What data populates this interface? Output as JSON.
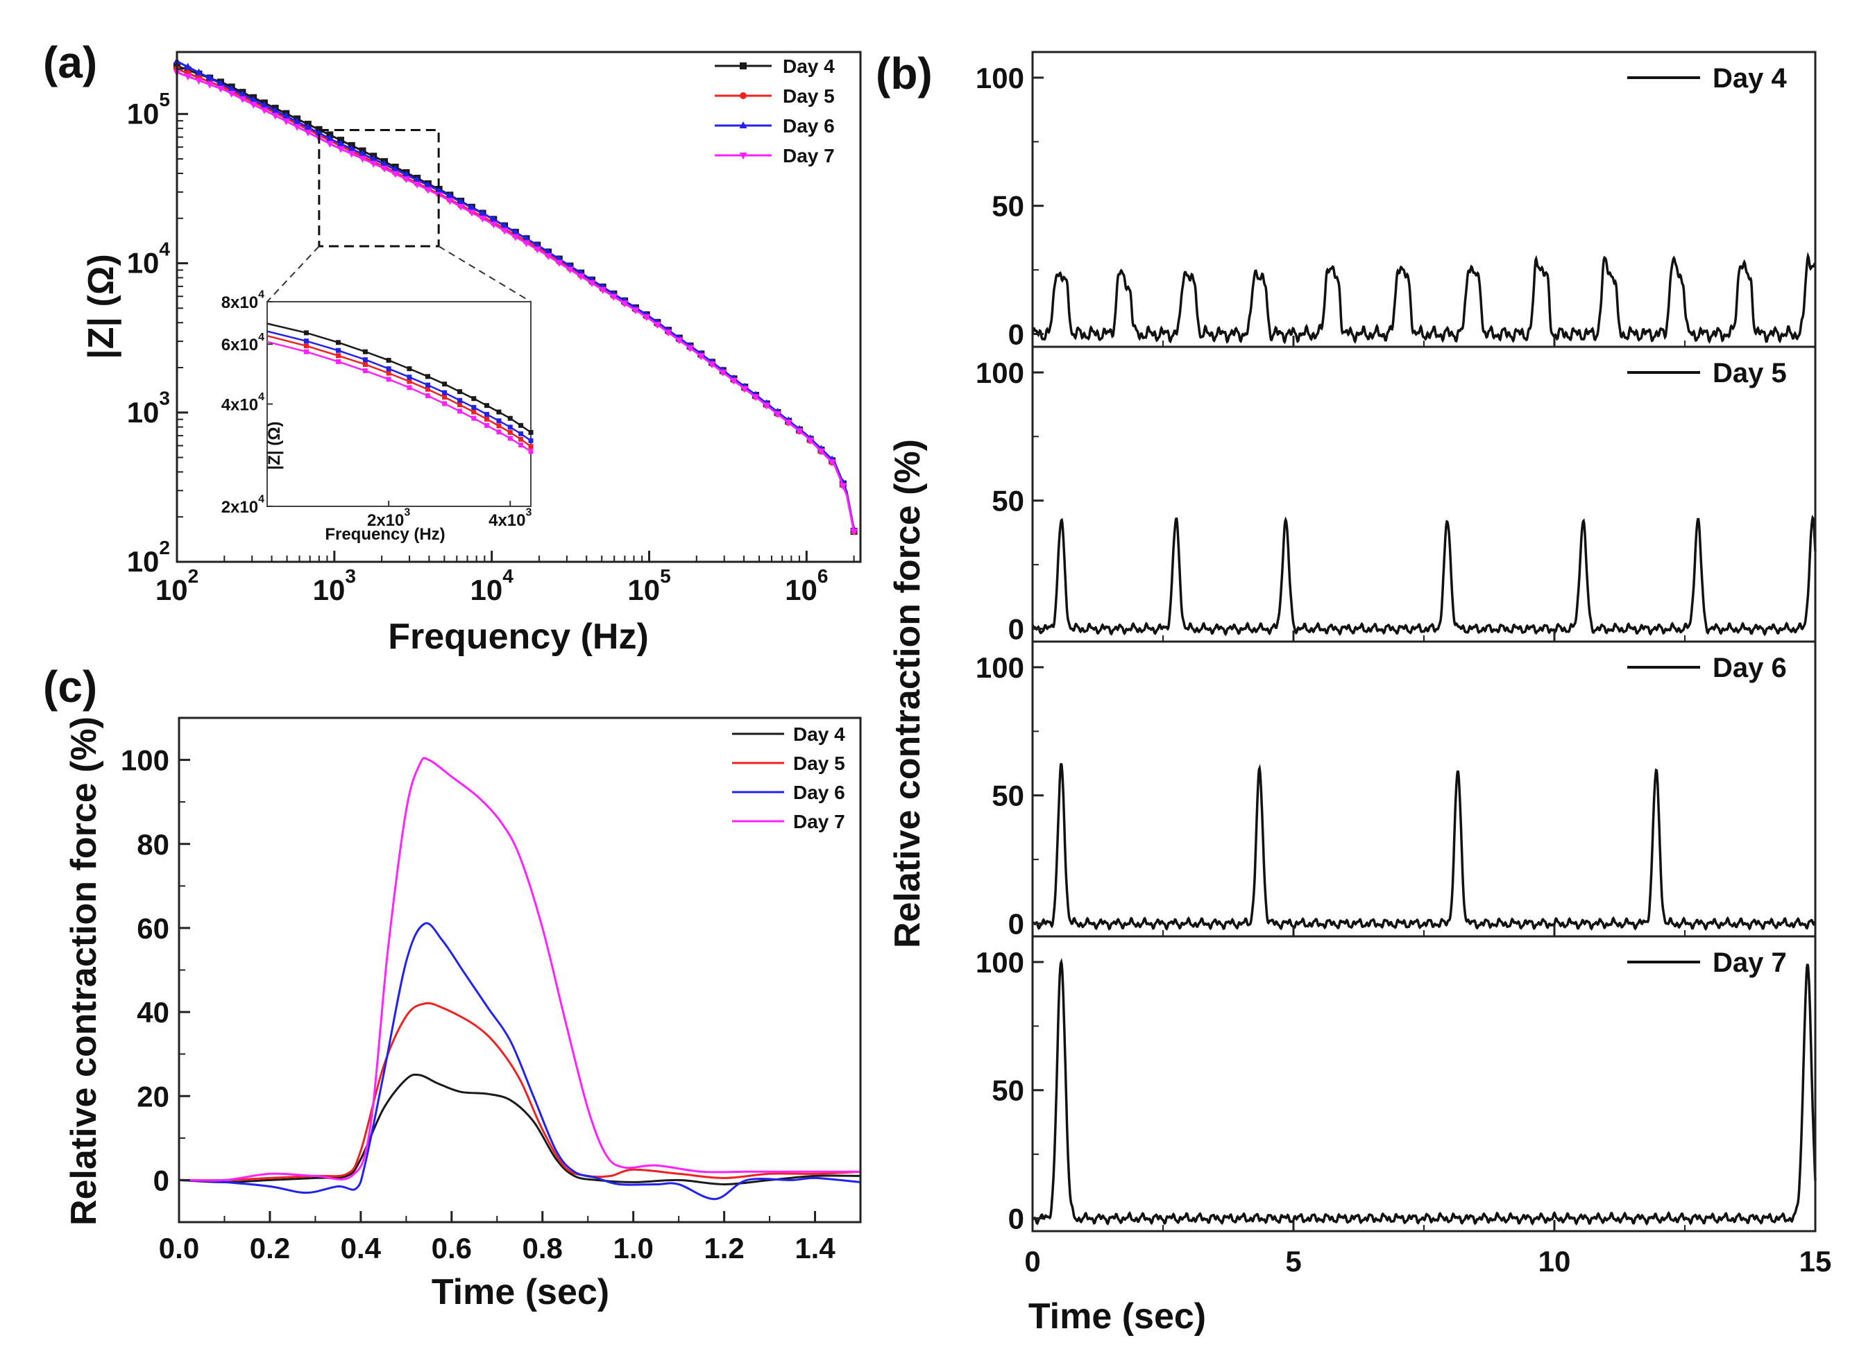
{
  "panel_labels": {
    "a": "(a)",
    "b": "(b)",
    "c": "(c)"
  },
  "colors": {
    "day4": "#1a1a1a",
    "day5": "#ee2222",
    "day6": "#2222ee",
    "day7": "#ff22ff"
  },
  "chart_data": [
    {
      "id": "a",
      "type": "line",
      "scale": "log-log",
      "title": "",
      "xlabel": "Frequency (Hz)",
      "ylabel": "|Z| (Ω)",
      "xlim": [
        100,
        2200000
      ],
      "ylim": [
        100,
        260000
      ],
      "xticks": [
        {
          "v": 100,
          "b": "10",
          "e": "2"
        },
        {
          "v": 1000,
          "b": "10",
          "e": "3"
        },
        {
          "v": 10000,
          "b": "10",
          "e": "4"
        },
        {
          "v": 100000,
          "b": "10",
          "e": "5"
        },
        {
          "v": 1000000,
          "b": "10",
          "e": "6"
        }
      ],
      "yticks": [
        {
          "v": 100,
          "b": "10",
          "e": "2"
        },
        {
          "v": 1000,
          "b": "10",
          "e": "3"
        },
        {
          "v": 10000,
          "b": "10",
          "e": "4"
        },
        {
          "v": 100000,
          "b": "10",
          "e": "5"
        }
      ],
      "legend": "top-right",
      "x": [
        100,
        200,
        500,
        1000,
        2000,
        5000,
        10000,
        20000,
        50000,
        100000,
        200000,
        500000,
        1000000,
        1500000,
        1800000,
        2000000
      ],
      "series": [
        {
          "name": "Day 4",
          "color": "#1a1a1a",
          "marker": "square",
          "values": [
            210000,
            160000,
            100000,
            70000,
            49000,
            30000,
            20000,
            13000,
            7000,
            4400,
            2600,
            1250,
            700,
            460,
            290,
            160
          ]
        },
        {
          "name": "Day 5",
          "color": "#ee2222",
          "marker": "circle",
          "values": [
            200000,
            150000,
            93000,
            64000,
            45000,
            28000,
            19000,
            12500,
            6800,
            4300,
            2550,
            1230,
            690,
            450,
            285,
            160
          ]
        },
        {
          "name": "Day 6",
          "color": "#2222ee",
          "marker": "triangle",
          "values": [
            225000,
            155000,
            96000,
            66000,
            47000,
            29500,
            20000,
            13000,
            7000,
            4400,
            2600,
            1260,
            710,
            470,
            295,
            165
          ]
        },
        {
          "name": "Day 7",
          "color": "#ff22ff",
          "marker": "tri-down",
          "values": [
            190000,
            145000,
            89000,
            61000,
            44000,
            27500,
            18500,
            12200,
            6700,
            4250,
            2520,
            1220,
            690,
            450,
            280,
            160
          ]
        }
      ],
      "zoom_box": {
        "x": [
          800,
          4600
        ],
        "y": [
          13000,
          78000
        ]
      },
      "inset": {
        "xlabel": "Frequency (Hz)",
        "ylabel": "|Z| (Ω)",
        "xlim": [
          1000,
          4500
        ],
        "ylim": [
          20000,
          80000
        ],
        "xticks": [
          {
            "v": 2000,
            "m": "2x10",
            "e": "3"
          },
          {
            "v": 4000,
            "m": "4x10",
            "e": "3"
          }
        ],
        "yticks": [
          {
            "v": 20000,
            "m": "2x10",
            "e": "4"
          },
          {
            "v": 40000,
            "m": "4x10",
            "e": "4"
          },
          {
            "v": 60000,
            "m": "6x10",
            "e": "4"
          },
          {
            "v": 80000,
            "m": "8x10",
            "e": "4"
          }
        ],
        "x": [
          1000,
          1250,
          1500,
          1750,
          2000,
          2250,
          2500,
          2750,
          3000,
          3250,
          3500,
          3750,
          4000,
          4250,
          4500
        ],
        "series": [
          {
            "name": "Day 4",
            "color": "#1a1a1a",
            "values": [
              69000,
              64800,
              60700,
              57000,
              53800,
              50800,
              48200,
              45800,
              43500,
              41500,
              39600,
              37900,
              36300,
              34600,
              33000
            ]
          },
          {
            "name": "Day 5",
            "color": "#ee2222",
            "values": [
              63500,
              59300,
              55500,
              52300,
              49300,
              46600,
              44200,
              41900,
              39800,
              37900,
              36100,
              34500,
              33000,
              31500,
              30000
            ]
          },
          {
            "name": "Day 6",
            "color": "#2222ee",
            "values": [
              65500,
              61300,
              57500,
              54000,
              50800,
              48000,
              45500,
              43200,
              41000,
              39100,
              37300,
              35700,
              34200,
              32700,
              31200
            ]
          },
          {
            "name": "Day 7",
            "color": "#ff22ff",
            "values": [
              61000,
              57000,
              53300,
              50100,
              47300,
              44700,
              42300,
              40100,
              38100,
              36300,
              34600,
              33100,
              31700,
              30300,
              29000
            ]
          }
        ]
      }
    },
    {
      "id": "b",
      "type": "line",
      "title": "",
      "xlabel": "Time (sec)",
      "ylabel": "Relative contraction force (%)",
      "xlim": [
        0,
        15
      ],
      "ylim": [
        -5,
        110
      ],
      "xticks": [
        0,
        5,
        10,
        15
      ],
      "yticks": [
        0,
        50,
        100
      ],
      "legend": "top-right",
      "subpanels": [
        {
          "name": "Day 4",
          "peak_times": [
            0.55,
            1.75,
            3.0,
            4.35,
            5.75,
            7.1,
            8.45,
            9.75,
            11.05,
            12.35,
            13.65,
            14.95
          ],
          "peak_values": [
            25,
            24,
            25,
            25,
            27,
            27,
            27,
            29,
            28,
            28,
            28,
            30
          ],
          "width": 0.22,
          "plateau": 0.6
        },
        {
          "name": "Day 5",
          "peak_times": [
            0.55,
            2.75,
            4.85,
            7.95,
            10.55,
            12.75,
            14.95
          ],
          "peak_values": [
            42,
            42,
            42,
            42,
            42,
            42,
            42
          ],
          "width": 0.16,
          "plateau": 0
        },
        {
          "name": "Day 6",
          "peak_times": [
            0.55,
            4.35,
            8.15,
            11.95
          ],
          "peak_values": [
            61,
            59,
            59,
            59
          ],
          "width": 0.16,
          "plateau": 0
        },
        {
          "name": "Day 7",
          "peak_times": [
            0.55,
            14.85
          ],
          "peak_values": [
            100,
            98
          ],
          "width": 0.2,
          "plateau": 0
        }
      ]
    },
    {
      "id": "c",
      "type": "line",
      "title": "",
      "xlabel": "Time (sec)",
      "ylabel": "Relative contraction force (%)",
      "xlim": [
        0,
        1.5
      ],
      "ylim": [
        -10,
        110
      ],
      "xticks": [
        0.0,
        0.2,
        0.4,
        0.6,
        0.8,
        1.0,
        1.2,
        1.4
      ],
      "xtick_labels": [
        "0.0",
        "0.2",
        "0.4",
        "0.6",
        "0.8",
        "1.0",
        "1.2",
        "1.4"
      ],
      "yticks": [
        0,
        20,
        40,
        60,
        80,
        100
      ],
      "legend": "top-right",
      "series": [
        {
          "name": "Day 4",
          "color": "#1a1a1a",
          "points": [
            [
              0,
              0
            ],
            [
              0.1,
              -0.5
            ],
            [
              0.2,
              0
            ],
            [
              0.3,
              0.5
            ],
            [
              0.37,
              1
            ],
            [
              0.4,
              5
            ],
            [
              0.45,
              17
            ],
            [
              0.5,
              24
            ],
            [
              0.53,
              25
            ],
            [
              0.57,
              23
            ],
            [
              0.62,
              21
            ],
            [
              0.68,
              20.5
            ],
            [
              0.73,
              19
            ],
            [
              0.78,
              14
            ],
            [
              0.83,
              5
            ],
            [
              0.87,
              1
            ],
            [
              0.92,
              0
            ],
            [
              1.0,
              -0.5
            ],
            [
              1.1,
              0
            ],
            [
              1.2,
              -1
            ],
            [
              1.3,
              0
            ],
            [
              1.4,
              1
            ],
            [
              1.5,
              1
            ]
          ]
        },
        {
          "name": "Day 5",
          "color": "#ee2222",
          "points": [
            [
              0,
              0
            ],
            [
              0.1,
              0
            ],
            [
              0.2,
              0.5
            ],
            [
              0.3,
              1
            ],
            [
              0.37,
              1.5
            ],
            [
              0.4,
              7
            ],
            [
              0.45,
              27
            ],
            [
              0.5,
              39
            ],
            [
              0.54,
              42
            ],
            [
              0.58,
              41
            ],
            [
              0.65,
              37
            ],
            [
              0.7,
              32
            ],
            [
              0.75,
              24
            ],
            [
              0.8,
              12
            ],
            [
              0.85,
              3
            ],
            [
              0.9,
              1
            ],
            [
              0.95,
              1
            ],
            [
              1.0,
              2.5
            ],
            [
              1.1,
              1.5
            ],
            [
              1.2,
              0.5
            ],
            [
              1.3,
              1.5
            ],
            [
              1.4,
              1.5
            ],
            [
              1.5,
              2
            ]
          ]
        },
        {
          "name": "Day 6",
          "color": "#2222ee",
          "points": [
            [
              0,
              0
            ],
            [
              0.1,
              -0.5
            ],
            [
              0.2,
              -1.5
            ],
            [
              0.28,
              -3
            ],
            [
              0.35,
              -1.5
            ],
            [
              0.39,
              -2
            ],
            [
              0.41,
              4
            ],
            [
              0.45,
              25
            ],
            [
              0.5,
              52
            ],
            [
              0.54,
              61
            ],
            [
              0.58,
              57
            ],
            [
              0.63,
              49
            ],
            [
              0.68,
              41
            ],
            [
              0.73,
              33
            ],
            [
              0.78,
              20
            ],
            [
              0.83,
              7
            ],
            [
              0.87,
              2
            ],
            [
              0.92,
              0.5
            ],
            [
              0.97,
              -1
            ],
            [
              1.05,
              -1
            ],
            [
              1.1,
              -1
            ],
            [
              1.18,
              -4.5
            ],
            [
              1.25,
              0
            ],
            [
              1.35,
              0
            ],
            [
              1.4,
              0.5
            ],
            [
              1.5,
              -0.5
            ]
          ]
        },
        {
          "name": "Day 7",
          "color": "#ff22ff",
          "points": [
            [
              0,
              0
            ],
            [
              0.1,
              0
            ],
            [
              0.2,
              1.5
            ],
            [
              0.3,
              1
            ],
            [
              0.38,
              1
            ],
            [
              0.42,
              12
            ],
            [
              0.46,
              55
            ],
            [
              0.5,
              88
            ],
            [
              0.53,
              99
            ],
            [
              0.55,
              100
            ],
            [
              0.6,
              96
            ],
            [
              0.66,
              91
            ],
            [
              0.71,
              85
            ],
            [
              0.75,
              77
            ],
            [
              0.8,
              60
            ],
            [
              0.85,
              38
            ],
            [
              0.9,
              17
            ],
            [
              0.94,
              6
            ],
            [
              0.98,
              3
            ],
            [
              1.05,
              3.5
            ],
            [
              1.15,
              2
            ],
            [
              1.25,
              2
            ],
            [
              1.35,
              2
            ],
            [
              1.5,
              2
            ]
          ]
        }
      ]
    }
  ]
}
